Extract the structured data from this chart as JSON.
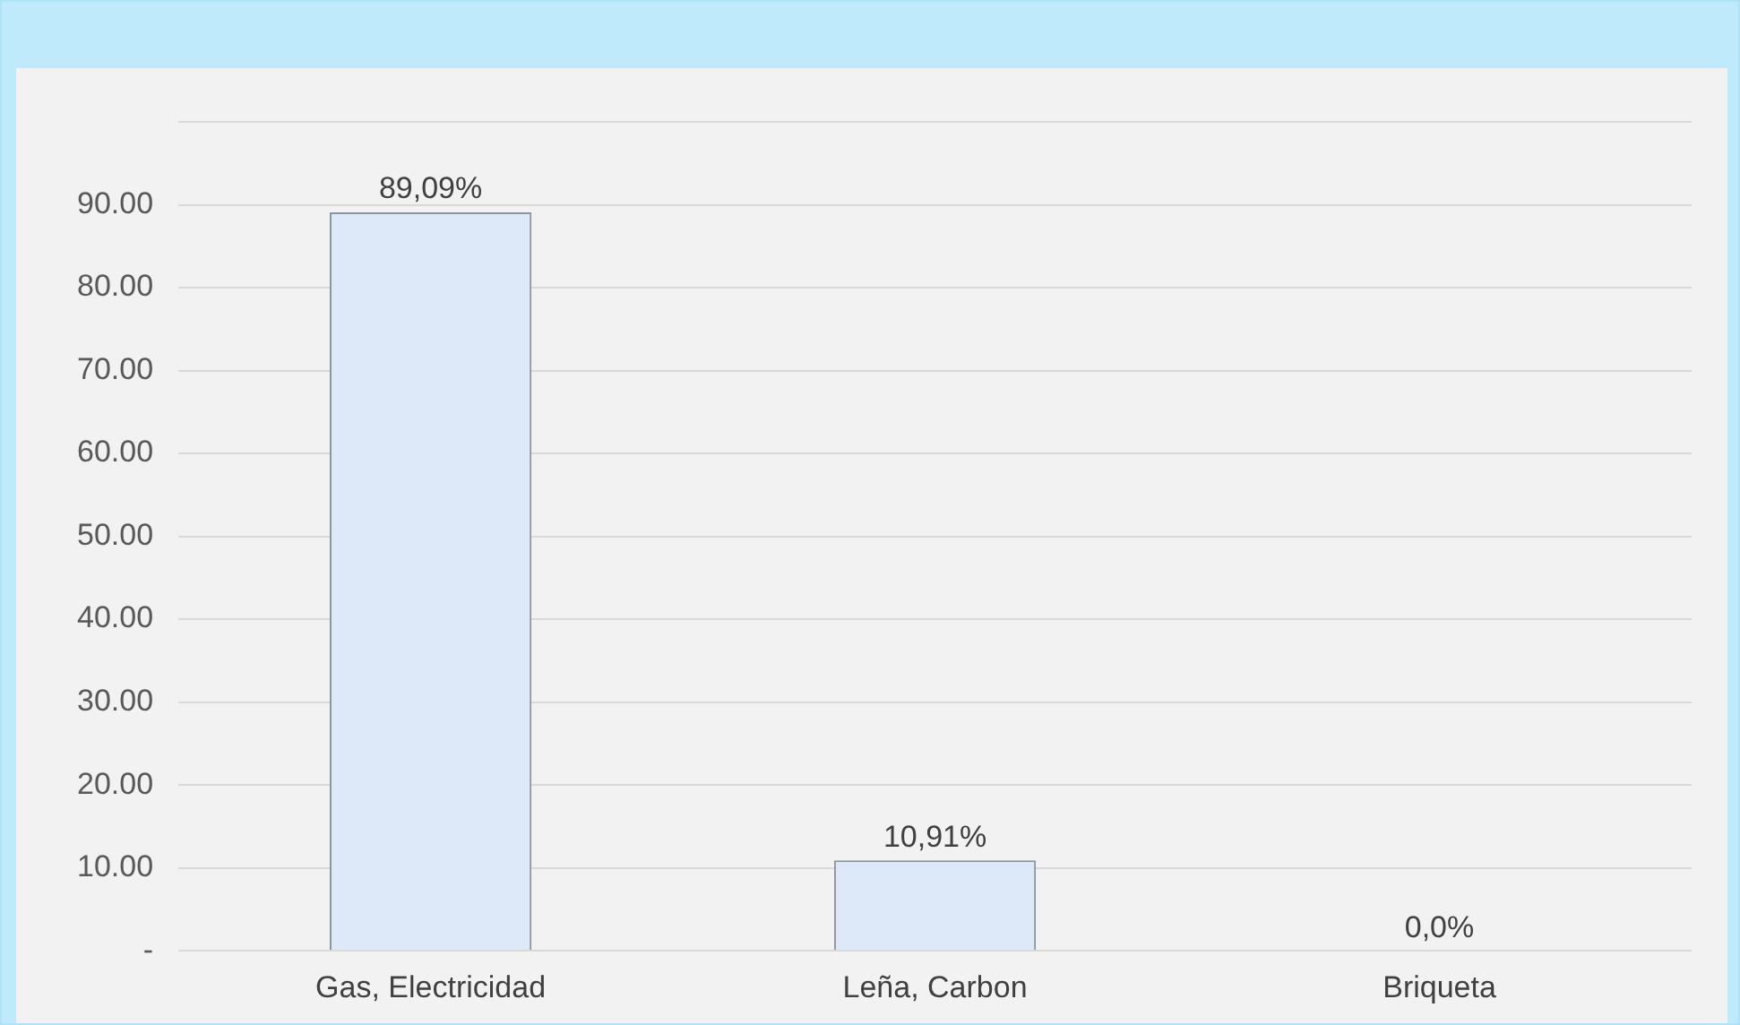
{
  "chart_data": {
    "type": "bar",
    "categories": [
      "Gas, Electricidad",
      "Leña, Carbon",
      "Briqueta"
    ],
    "values": [
      89.09,
      10.91,
      0
    ],
    "value_labels": [
      "89,09%",
      "10,91%",
      "0,0%"
    ],
    "color": "#dde9f8",
    "ylim": [
      0,
      100
    ],
    "yticks": [
      {
        "value": 0,
        "label": "-"
      },
      {
        "value": 10,
        "label": "10.00"
      },
      {
        "value": 20,
        "label": "20.00"
      },
      {
        "value": 30,
        "label": "30.00"
      },
      {
        "value": 40,
        "label": "40.00"
      },
      {
        "value": 50,
        "label": "50.00"
      },
      {
        "value": 60,
        "label": "60.00"
      },
      {
        "value": 70,
        "label": "70.00"
      },
      {
        "value": 80,
        "label": "80.00"
      },
      {
        "value": 90,
        "label": "90.00"
      },
      {
        "value": 100,
        "label": null
      }
    ],
    "grid": "y",
    "legend": false
  }
}
